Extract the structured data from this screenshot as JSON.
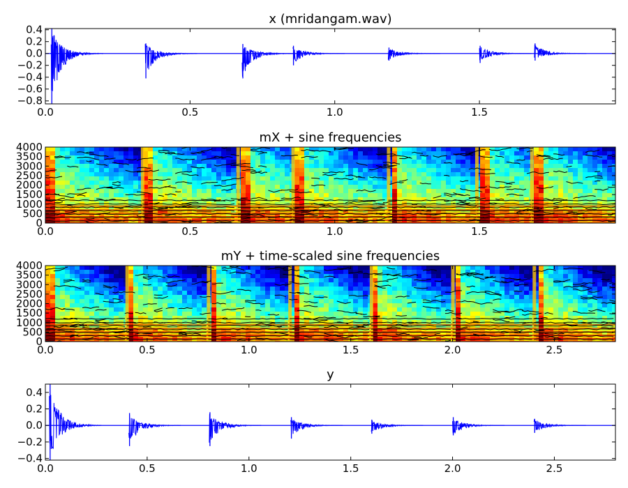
{
  "chart_data": [
    {
      "type": "line",
      "title": "x (mridangam.wav)",
      "xlim": [
        0.0,
        1.97
      ],
      "ylim": [
        -0.85,
        0.42
      ],
      "xticks": [
        "0.0",
        "0.5",
        "1.0",
        "1.5"
      ],
      "yticks": [
        "0.4",
        "0.2",
        "0.0",
        "−0.2",
        "−0.4",
        "−0.6",
        "−0.8"
      ],
      "line_color": "#0000ff",
      "onsets": [
        {
          "t": 0.02,
          "pos": 0.42,
          "neg": -0.85
        },
        {
          "t": 0.345,
          "pos": 0.17,
          "neg": -0.42
        },
        {
          "t": 0.68,
          "pos": 0.16,
          "neg": -0.42
        },
        {
          "t": 0.855,
          "pos": 0.13,
          "neg": -0.2
        },
        {
          "t": 1.185,
          "pos": 0.1,
          "neg": -0.12
        },
        {
          "t": 1.5,
          "pos": 0.13,
          "neg": -0.16
        },
        {
          "t": 1.69,
          "pos": 0.17,
          "neg": -0.12
        }
      ]
    },
    {
      "type": "heatmap",
      "title": "mX + sine frequencies",
      "xlim": [
        0.0,
        1.97
      ],
      "ylim": [
        0,
        4000
      ],
      "xticks": [
        "0.0",
        "0.5",
        "1.0",
        "1.5"
      ],
      "yticks": [
        "4000",
        "3500",
        "3000",
        "2500",
        "2000",
        "1500",
        "1000",
        "500",
        "0"
      ],
      "colormap": "jet",
      "tracks_color": "#000000",
      "onsets": [
        0.0,
        0.335,
        0.665,
        0.855,
        1.185,
        1.49,
        1.68
      ]
    },
    {
      "type": "heatmap",
      "title": "mY + time-scaled sine frequencies",
      "xlim": [
        0.0,
        2.8
      ],
      "ylim": [
        0,
        4000
      ],
      "xticks": [
        "0.0",
        "0.5",
        "1.0",
        "1.5",
        "2.0",
        "2.5"
      ],
      "yticks": [
        "4000",
        "3500",
        "3000",
        "2500",
        "2000",
        "1500",
        "1000",
        "500",
        "0"
      ],
      "colormap": "jet",
      "tracks_color": "#000000",
      "onsets": [
        0.0,
        0.4,
        0.8,
        1.2,
        1.6,
        2.0,
        2.4
      ]
    },
    {
      "type": "line",
      "title": "y",
      "xlim": [
        0.0,
        2.8
      ],
      "ylim": [
        -0.42,
        0.5
      ],
      "xticks": [
        "0.0",
        "0.5",
        "1.0",
        "1.5",
        "2.0",
        "2.5"
      ],
      "yticks": [
        "0.4",
        "0.2",
        "0.0",
        "−0.2",
        "−0.4"
      ],
      "line_color": "#0000ff",
      "onsets": [
        {
          "t": 0.02,
          "pos": 0.5,
          "neg": -0.42
        },
        {
          "t": 0.41,
          "pos": 0.15,
          "neg": -0.25
        },
        {
          "t": 0.805,
          "pos": 0.16,
          "neg": -0.25
        },
        {
          "t": 1.205,
          "pos": 0.1,
          "neg": -0.16
        },
        {
          "t": 1.6,
          "pos": 0.07,
          "neg": -0.1
        },
        {
          "t": 2.0,
          "pos": 0.1,
          "neg": -0.12
        },
        {
          "t": 2.4,
          "pos": 0.08,
          "neg": -0.09
        }
      ]
    }
  ]
}
